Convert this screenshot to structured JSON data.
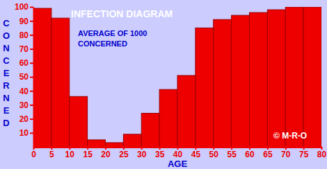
{
  "chart_data": {
    "type": "histogram",
    "title": "INFECTION DIAGRAM",
    "subtitle": "AVERAGE OF 1000\nCONCERNED",
    "xlabel": "AGE",
    "ylabel": "CONCERNED",
    "annotations": [
      "© M-R-O"
    ],
    "bins": [
      0,
      5,
      10,
      15,
      20,
      25,
      30,
      35,
      40,
      45,
      50,
      55,
      60,
      65,
      70,
      75,
      80
    ],
    "values": [
      99,
      92,
      36,
      5,
      3,
      9,
      24,
      41,
      51,
      85,
      91,
      94,
      96,
      98,
      100,
      100
    ],
    "color": "#ee0000",
    "xlim": [
      0,
      80
    ],
    "xticks": [
      0,
      5,
      10,
      15,
      20,
      25,
      30,
      35,
      40,
      45,
      50,
      55,
      60,
      65,
      70,
      75,
      80
    ],
    "ylim": [
      0,
      100
    ],
    "yticks": [
      10,
      20,
      30,
      40,
      50,
      60,
      70,
      80,
      90,
      100
    ],
    "grid": false
  }
}
